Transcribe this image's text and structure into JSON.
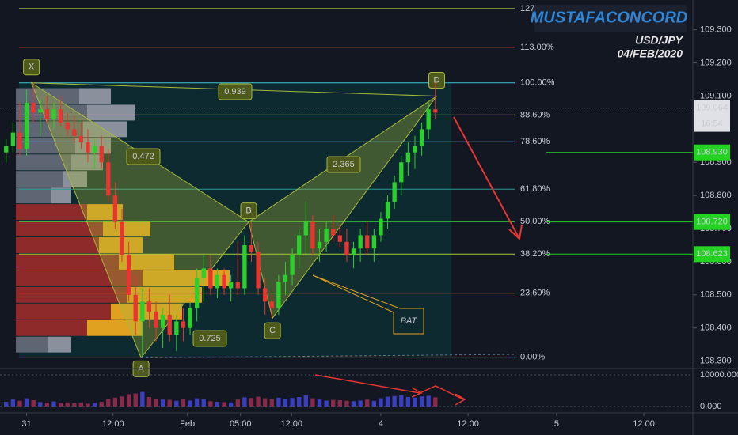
{
  "chart_data": {
    "type": "candlestick",
    "symbol": "USD/JPY",
    "date": "04/FEB/2020",
    "watermark": "MUSTAFACONCORD",
    "xlim": [
      -0.9,
      100.8
    ],
    "ylim": [
      108.28,
      109.39
    ],
    "yticks": [
      {
        "value": 109.3,
        "label": "109.300"
      },
      {
        "value": 109.2,
        "label": "109.200"
      },
      {
        "value": 109.1,
        "label": "109.100"
      },
      {
        "value": 108.9,
        "label": "108.900"
      },
      {
        "value": 108.8,
        "label": "108.800"
      },
      {
        "value": 108.7,
        "label": "108.700"
      },
      {
        "value": 108.6,
        "label": "108.600"
      },
      {
        "value": 108.5,
        "label": "108.500"
      },
      {
        "value": 108.4,
        "label": "108.400"
      },
      {
        "value": 108.3,
        "label": "108.300"
      }
    ],
    "xticks": [
      {
        "value": 3,
        "label": "31"
      },
      {
        "value": 15.7,
        "label": "12:00"
      },
      {
        "value": 26.6,
        "label": "Feb"
      },
      {
        "value": 34.4,
        "label": "05:00"
      },
      {
        "value": 41.9,
        "label": "12:00"
      },
      {
        "value": 55,
        "label": "4"
      },
      {
        "value": 67.8,
        "label": "12:00"
      },
      {
        "value": 80.8,
        "label": "5"
      },
      {
        "value": 93.6,
        "label": "12:00"
      }
    ],
    "up_color": "#2bd12b",
    "down_color": "#e8352f",
    "x": [
      0,
      1,
      2,
      3,
      4,
      5,
      6,
      7,
      8,
      9,
      10,
      11,
      12,
      13,
      14,
      15,
      16,
      17,
      18,
      19,
      20,
      21,
      22,
      23,
      24,
      25,
      26,
      27,
      28,
      29,
      30,
      31,
      32,
      33,
      34,
      35,
      36,
      37,
      38,
      39,
      40,
      41,
      42,
      43,
      44,
      45,
      46,
      47,
      48,
      49,
      50,
      51,
      52,
      53,
      54,
      55,
      56,
      57,
      58,
      59,
      60,
      61,
      62,
      63
    ],
    "open": [
      108.93,
      108.95,
      108.99,
      108.94,
      109.08,
      109.05,
      109.06,
      109.03,
      109.06,
      109.02,
      109.0,
      108.98,
      108.96,
      108.93,
      108.95,
      108.9,
      108.8,
      108.72,
      108.62,
      108.5,
      108.42,
      108.48,
      108.45,
      108.4,
      108.44,
      108.38,
      108.42,
      108.4,
      108.46,
      108.55,
      108.58,
      108.52,
      108.56,
      108.52,
      108.54,
      108.52,
      108.65,
      108.63,
      108.52,
      108.48,
      108.46,
      108.54,
      108.56,
      108.62,
      108.68,
      108.72,
      108.64,
      108.66,
      108.7,
      108.68,
      108.66,
      108.62,
      108.64,
      108.68,
      108.64,
      108.68,
      108.73,
      108.78,
      108.84,
      108.9,
      108.93,
      108.95,
      109.0,
      109.06
    ],
    "high": [
      108.97,
      109.02,
      109.08,
      109.12,
      109.14,
      109.09,
      109.1,
      109.08,
      109.1,
      109.05,
      109.04,
      109.02,
      109.0,
      108.97,
      108.98,
      108.94,
      108.84,
      108.76,
      108.66,
      108.56,
      108.52,
      108.52,
      108.48,
      108.46,
      108.5,
      108.44,
      108.46,
      108.48,
      108.58,
      108.62,
      108.62,
      108.58,
      108.58,
      108.56,
      108.66,
      108.68,
      108.72,
      108.66,
      108.55,
      108.5,
      108.56,
      108.6,
      108.64,
      108.7,
      108.78,
      108.74,
      108.7,
      108.72,
      108.74,
      108.71,
      108.7,
      108.66,
      108.7,
      108.72,
      108.7,
      108.75,
      108.8,
      108.86,
      108.92,
      108.96,
      108.98,
      109.02,
      109.08,
      109.14
    ],
    "low": [
      108.9,
      108.93,
      108.92,
      108.92,
      109.02,
      108.98,
      109.02,
      109.0,
      109.01,
      108.98,
      108.96,
      108.94,
      108.9,
      108.88,
      108.88,
      108.78,
      108.7,
      108.6,
      108.48,
      108.38,
      108.31,
      108.4,
      108.36,
      108.34,
      108.36,
      108.33,
      108.36,
      108.38,
      108.42,
      108.48,
      108.5,
      108.49,
      108.5,
      108.48,
      108.5,
      108.5,
      108.6,
      108.5,
      108.44,
      108.43,
      108.44,
      108.5,
      108.53,
      108.58,
      108.62,
      108.62,
      108.6,
      108.63,
      108.66,
      108.64,
      108.6,
      108.58,
      108.6,
      108.62,
      108.6,
      108.66,
      108.7,
      108.76,
      108.8,
      108.86,
      108.88,
      108.92,
      108.97,
      109.03
    ],
    "close": [
      108.95,
      108.99,
      108.94,
      109.08,
      109.05,
      109.06,
      109.03,
      109.06,
      109.02,
      109.0,
      108.98,
      108.96,
      108.93,
      108.95,
      108.9,
      108.8,
      108.72,
      108.62,
      108.5,
      108.42,
      108.48,
      108.45,
      108.4,
      108.44,
      108.38,
      108.42,
      108.4,
      108.46,
      108.55,
      108.58,
      108.52,
      108.56,
      108.52,
      108.54,
      108.52,
      108.65,
      108.63,
      108.52,
      108.48,
      108.46,
      108.54,
      108.56,
      108.62,
      108.68,
      108.72,
      108.64,
      108.66,
      108.7,
      108.68,
      108.66,
      108.62,
      108.64,
      108.68,
      108.64,
      108.68,
      108.73,
      108.78,
      108.84,
      108.9,
      108.93,
      108.95,
      109.0,
      109.06,
      109.05
    ],
    "volume": {
      "ylim": [
        0,
        12000
      ],
      "yticks": [
        {
          "value": 10000,
          "label": "10000.000"
        },
        {
          "value": 0,
          "label": "0.000"
        }
      ],
      "values": [
        1500,
        2200,
        1800,
        2600,
        2000,
        1400,
        1200,
        1600,
        1100,
        1300,
        1000,
        1200,
        900,
        1100,
        1500,
        2400,
        2800,
        3200,
        3900,
        4100,
        4600,
        3000,
        2500,
        2200,
        2100,
        1800,
        2400,
        1900,
        2600,
        2300,
        1700,
        1500,
        1400,
        1300,
        2200,
        2900,
        2700,
        3100,
        2600,
        2400,
        2800,
        2500,
        2700,
        3000,
        3500,
        2600,
        2200,
        1900,
        2100,
        2000,
        1800,
        1700,
        1900,
        2200,
        1800,
        2600,
        3100,
        3300,
        3600,
        3000,
        2800,
        3200,
        3400,
        2900
      ]
    },
    "volume_profile": {
      "prices": [
        109.1,
        109.05,
        109.0,
        108.95,
        108.9,
        108.85,
        108.8,
        108.75,
        108.7,
        108.65,
        108.6,
        108.55,
        108.5,
        108.45,
        108.4,
        108.35
      ],
      "buy": [
        40,
        60,
        55,
        45,
        40,
        30,
        25,
        45,
        60,
        55,
        70,
        110,
        95,
        90,
        70,
        30
      ],
      "sell": [
        80,
        90,
        85,
        75,
        70,
        60,
        45,
        90,
        110,
        105,
        130,
        160,
        140,
        120,
        90,
        40
      ]
    },
    "fib_levels": {
      "labels": [
        "127.00%",
        "113.00%",
        "100.00%",
        "88.60%",
        "78.60%",
        "61.80%",
        "50.00%",
        "38.20%",
        "23.60%",
        "0.00%"
      ],
      "prices": [
        109.364,
        109.247,
        109.14,
        109.043,
        108.962,
        108.819,
        108.721,
        108.623,
        108.505,
        108.312
      ],
      "colors": [
        "#b5cc3c",
        "#d33b3b",
        "#3cc6d6",
        "#c8cc5a",
        "#4ba3c9",
        "#2a9a92",
        "#3cd23c",
        "#a8cc3c",
        "#d33b3b",
        "#3cc6d6"
      ]
    },
    "pattern": {
      "points": [
        "X",
        "A",
        "B",
        "C",
        "D"
      ],
      "x": [
        3.7,
        19.8,
        35.6,
        39.1,
        63.2
      ],
      "y": [
        109.14,
        108.31,
        108.72,
        108.43,
        109.1
      ],
      "ratios": [
        "0.939",
        "0.472",
        "2.365",
        "0.725"
      ],
      "name": "BAT"
    },
    "price_labels": {
      "current": {
        "value": 109.064,
        "label": "109.064"
      },
      "countdown": "16:54",
      "levels": [
        {
          "value": 108.93,
          "label": "108.930"
        },
        {
          "value": 108.72,
          "label": "108.720"
        },
        {
          "value": 108.623,
          "label": "108.623"
        }
      ]
    }
  }
}
